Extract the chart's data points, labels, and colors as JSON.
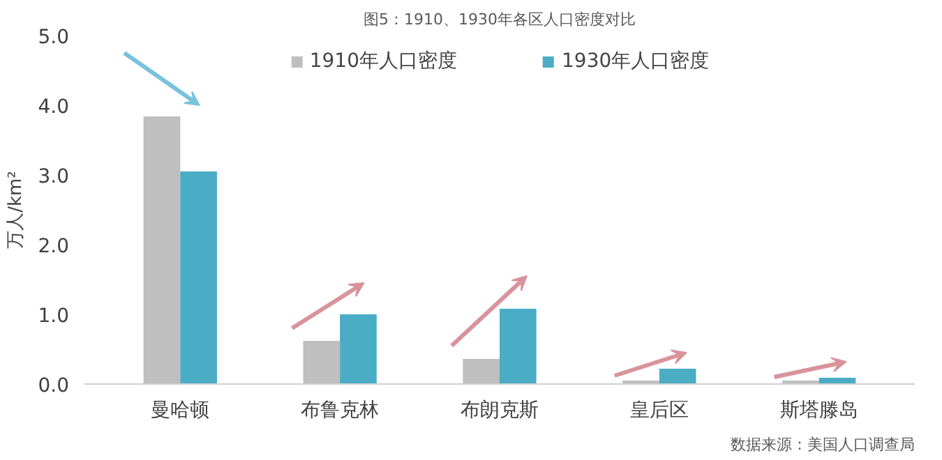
{
  "chart_data": {
    "type": "bar",
    "title": "图5：1910、1930年各区人口密度对比",
    "ylabel": "万人/km²",
    "categories": [
      "曼哈顿",
      "布鲁克林",
      "布朗克斯",
      "皇后区",
      "斯塔滕岛"
    ],
    "series": [
      {
        "name": "1910年人口密度",
        "color": "#c0bfc0",
        "values": [
          3.84,
          0.62,
          0.36,
          0.05,
          0.05
        ]
      },
      {
        "name": "1930年人口密度",
        "color": "#4bacc6",
        "values": [
          3.05,
          1.0,
          1.08,
          0.22,
          0.09
        ]
      }
    ],
    "ylim": [
      0,
      5
    ],
    "yticks": [
      {
        "value": 0,
        "label": "0.0"
      },
      {
        "value": 1,
        "label": "1.0"
      },
      {
        "value": 2,
        "label": "2.0"
      },
      {
        "value": 3,
        "label": "3.0"
      },
      {
        "value": 4,
        "label": "4.0"
      },
      {
        "value": 5,
        "label": "5.0"
      }
    ],
    "grid": false,
    "legend": "top",
    "annotations": [
      "数据来源：美国人口调查局"
    ]
  }
}
